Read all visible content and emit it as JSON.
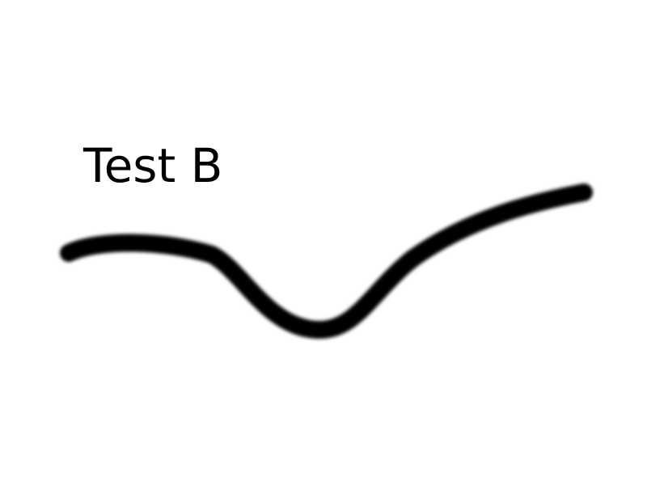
{
  "label": {
    "text": "Test B"
  },
  "stroke": {
    "color": "#000000",
    "shape": "hand-drawn-curve"
  },
  "background": {
    "color": "#ffffff"
  }
}
